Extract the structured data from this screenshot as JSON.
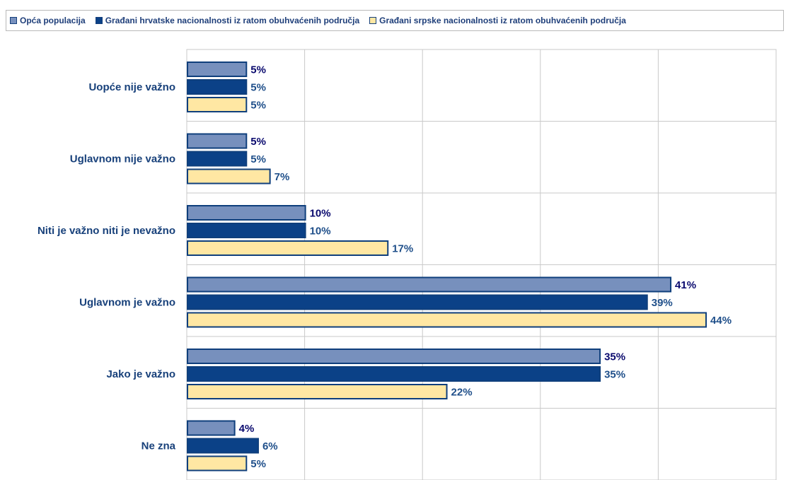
{
  "legend": [
    {
      "label": "Opća populacija",
      "color": "#7790bd"
    },
    {
      "label": "Građani hrvatske nacionalnosti iz ratom obuhvaćenih područja",
      "color": "#0b4187"
    },
    {
      "label": "Građani srpske nacionalnosti iz ratom obuhvaćenih područja",
      "color": "#ffe7a3"
    }
  ],
  "chart_data": {
    "type": "bar",
    "orientation": "horizontal",
    "categories": [
      "Uopće nije važno",
      "Uglavnom nije važno",
      "Niti je važno niti je nevažno",
      "Uglavnom je važno",
      "Jako je važno",
      "Ne zna"
    ],
    "series": [
      {
        "name": "Opća populacija",
        "values": [
          5,
          5,
          10,
          41,
          35,
          4
        ],
        "color": "#7790bd",
        "label_color": "#0a0a6e"
      },
      {
        "name": "Građani hrvatske nacionalnosti iz ratom obuhvaćenih područja",
        "values": [
          5,
          5,
          10,
          39,
          35,
          6
        ],
        "color": "#0b4187",
        "label_color": "#1f4f8a"
      },
      {
        "name": "Građani srpske nacionalnosti iz ratom obuhvaćenih područja",
        "values": [
          5,
          7,
          17,
          44,
          22,
          5
        ],
        "color": "#ffe7a3",
        "label_color": "#1f4f8a"
      }
    ],
    "value_suffix": "%",
    "xlim": [
      0,
      50
    ],
    "grid": true,
    "legend_position": "top"
  }
}
